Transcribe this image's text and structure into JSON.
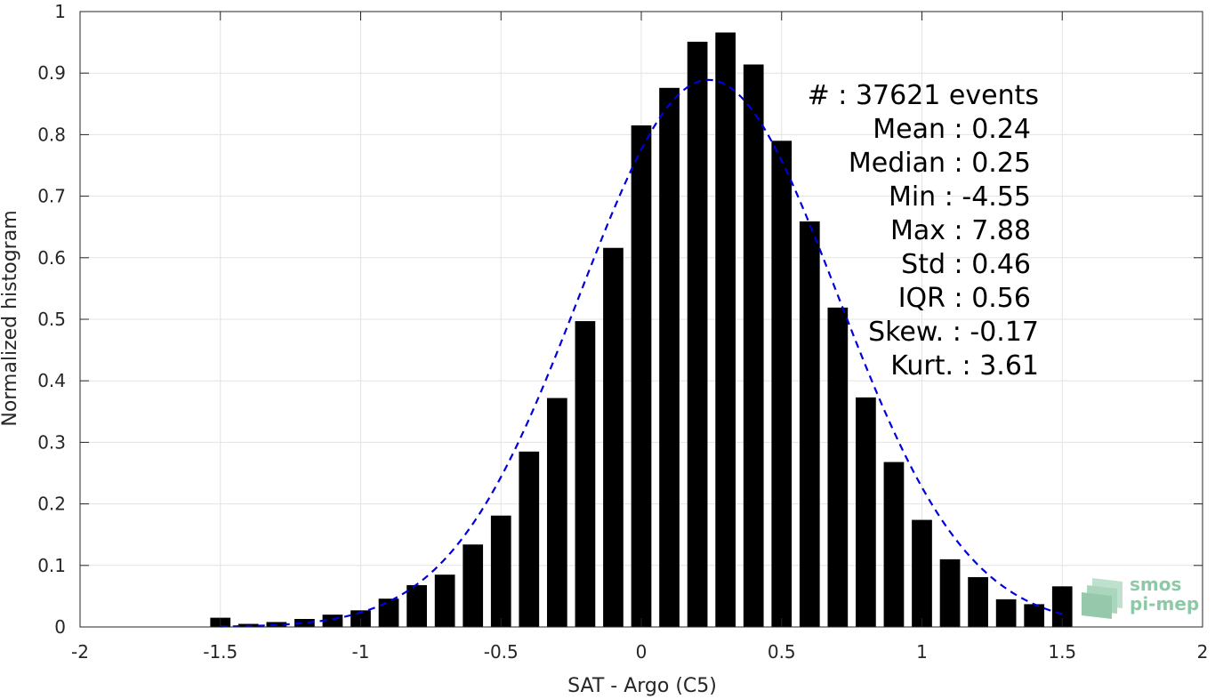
{
  "chart_data": {
    "type": "bar",
    "xlabel": "SAT - Argo (C5)",
    "ylabel": "Normalized histogram",
    "xlim": [
      -2,
      2
    ],
    "ylim": [
      0,
      1
    ],
    "xticks": [
      "-2",
      "-1.5",
      "-1",
      "-0.5",
      "0",
      "0.5",
      "1",
      "1.5",
      "2"
    ],
    "xtick_values": [
      -2,
      -1.5,
      -1,
      -0.5,
      0,
      0.5,
      1,
      1.5,
      2
    ],
    "yticks": [
      "0",
      "0.1",
      "0.2",
      "0.3",
      "0.4",
      "0.5",
      "0.6",
      "0.7",
      "0.8",
      "0.9",
      "1"
    ],
    "ytick_values": [
      0,
      0.1,
      0.2,
      0.3,
      0.4,
      0.5,
      0.6,
      0.7,
      0.8,
      0.9,
      1
    ],
    "grid": true,
    "bin_width": 0.1,
    "bar_color": "#000000",
    "bins": {
      "x": [
        -1.5,
        -1.4,
        -1.3,
        -1.2,
        -1.1,
        -1.0,
        -0.9,
        -0.8,
        -0.7,
        -0.6,
        -0.5,
        -0.4,
        -0.3,
        -0.2,
        -0.1,
        0.0,
        0.1,
        0.2,
        0.3,
        0.4,
        0.5,
        0.6,
        0.7,
        0.8,
        0.9,
        1.0,
        1.1,
        1.2,
        1.3,
        1.4,
        1.5
      ],
      "values": [
        0.015,
        0.005,
        0.008,
        0.013,
        0.02,
        0.027,
        0.046,
        0.068,
        0.085,
        0.134,
        0.181,
        0.285,
        0.372,
        0.497,
        0.616,
        0.815,
        0.876,
        0.951,
        0.966,
        0.914,
        0.79,
        0.659,
        0.519,
        0.373,
        0.268,
        0.174,
        0.11,
        0.081,
        0.045,
        0.037,
        0.066
      ]
    },
    "fit": {
      "type": "gaussian",
      "style": "dashed",
      "color": "#0000dd",
      "mean": 0.24,
      "std": 0.46,
      "peak": 0.889,
      "x_range": [
        -1.5,
        1.5
      ]
    },
    "stats_labels": [
      "#  : 37621 events",
      "Mean : 0.24",
      "Median : 0.25",
      "Min : -4.55",
      "Max : 7.88",
      "Std : 0.46",
      "IQR : 0.56",
      "Skew. : -0.17",
      "Kurt. : 3.61"
    ]
  },
  "logo": {
    "line1": "smos",
    "line2": "pi-mep",
    "color": "#8ec9a7"
  }
}
